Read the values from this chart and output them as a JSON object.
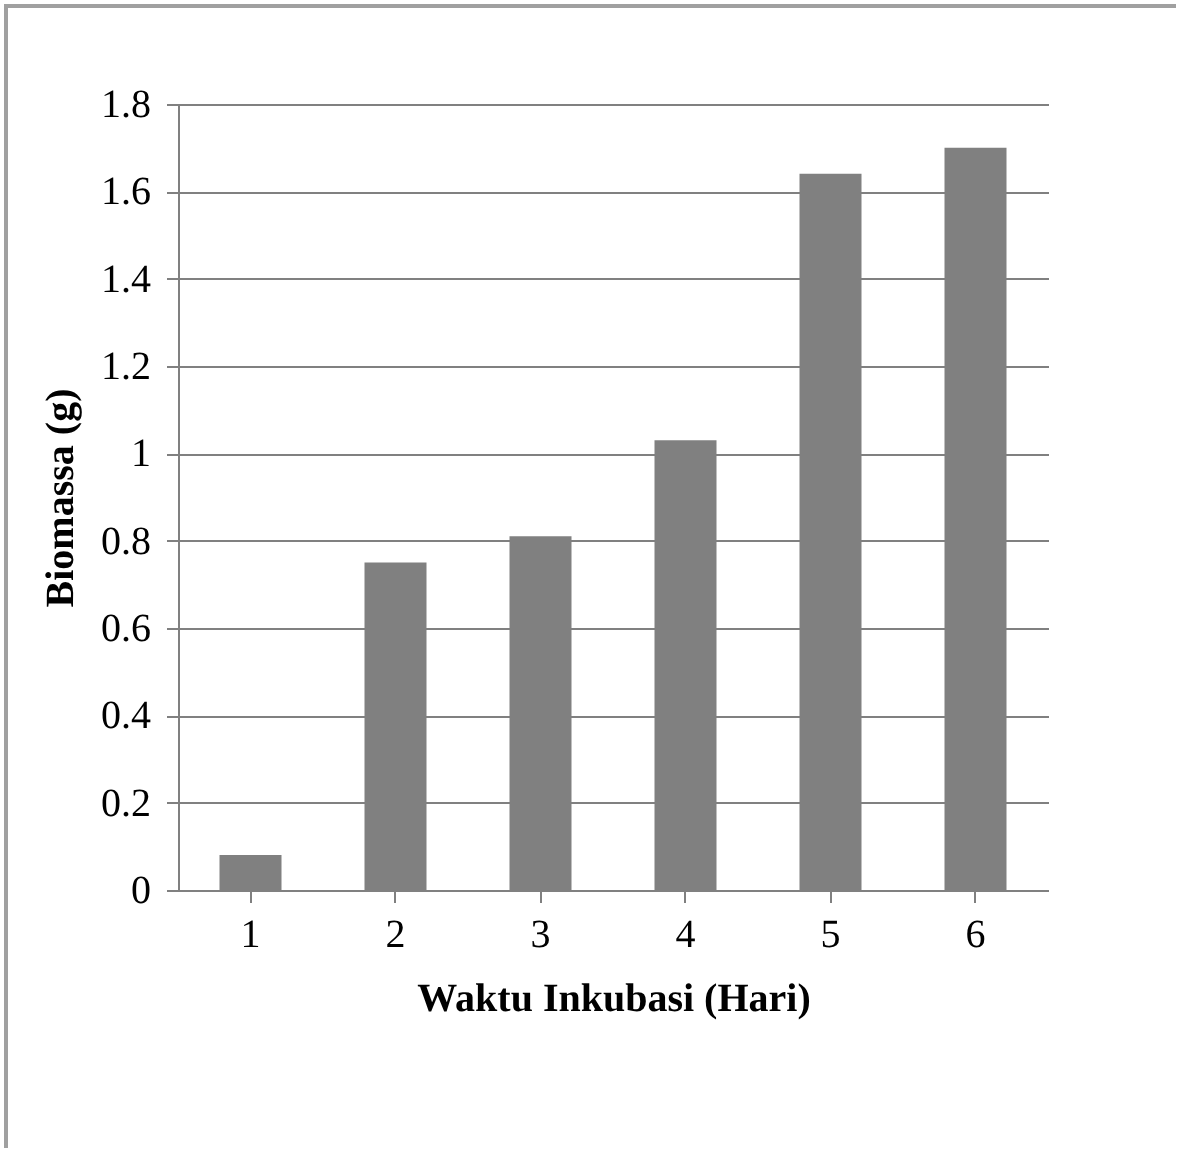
{
  "chart_data": {
    "type": "bar",
    "xlabel": "Waktu Inkubasi (Hari)",
    "ylabel": "Biomassa (g)",
    "categories": [
      "1",
      "2",
      "3",
      "4",
      "5",
      "6"
    ],
    "values": [
      0.08,
      0.75,
      0.81,
      1.03,
      1.64,
      1.7
    ],
    "color": "#808080",
    "ylim": [
      0,
      1.8
    ],
    "yticks": [
      0,
      0.2,
      0.4,
      0.6,
      0.8,
      1,
      1.2,
      1.4,
      1.6,
      1.8
    ],
    "grid": "y"
  }
}
